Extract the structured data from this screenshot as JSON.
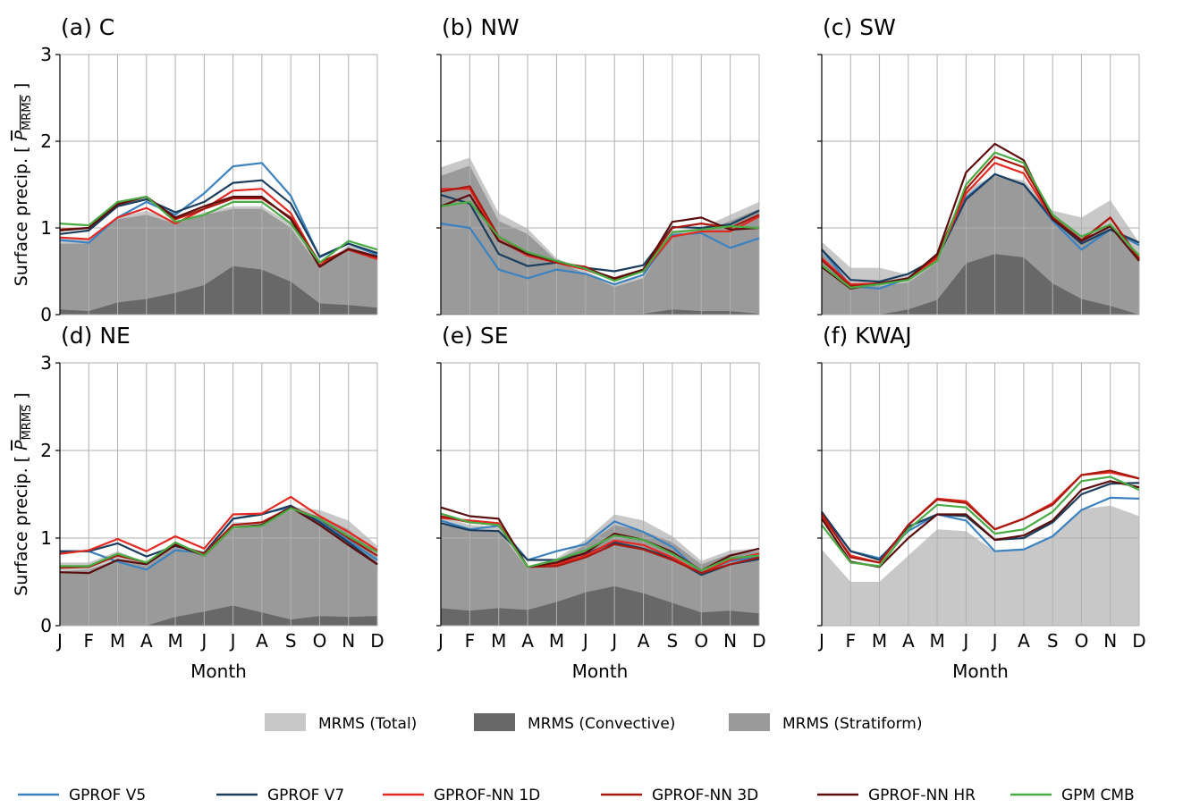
{
  "legend": {
    "areas": [
      {
        "name": "MRMS (Total)",
        "color": "#c8c8c8"
      },
      {
        "name": "MRMS (Convective)",
        "color": "#686868"
      },
      {
        "name": "MRMS (Stratiform)",
        "color": "#9a9a9a"
      }
    ],
    "lines": [
      {
        "name": "GPROF V5",
        "color": "#3b82c0"
      },
      {
        "name": "GPROF V7",
        "color": "#1c3e5e"
      },
      {
        "name": "GPROF-NN 1D",
        "color": "#e32a22"
      },
      {
        "name": "GPROF-NN 3D",
        "color": "#a8190f"
      },
      {
        "name": "GPROF-NN HR",
        "color": "#5a0e0e"
      },
      {
        "name": "GPM CMB",
        "color": "#4aab44"
      }
    ]
  },
  "chart_data": [
    {
      "type": "area",
      "title": "(a) C",
      "categories": [
        "J",
        "F",
        "M",
        "A",
        "M",
        "J",
        "J",
        "A",
        "S",
        "O",
        "N",
        "D"
      ],
      "ylabel": "Surface precip. [ P_MRMS ]",
      "xlabel": "",
      "ylim": [
        0,
        3
      ],
      "yticks": [
        0,
        1,
        2,
        3
      ],
      "grid": true,
      "area_series": [
        {
          "name": "MRMS (Total)",
          "values": [
            0.88,
            0.88,
            1.12,
            1.2,
            1.07,
            1.18,
            1.25,
            1.25,
            1.05,
            0.56,
            0.8,
            0.72
          ]
        },
        {
          "name": "MRMS (Stratiform)",
          "values": [
            0.82,
            0.82,
            1.1,
            1.15,
            1.05,
            1.15,
            1.22,
            1.22,
            1.0,
            0.54,
            0.76,
            0.65
          ]
        },
        {
          "name": "MRMS (Convective)",
          "values": [
            0.06,
            0.04,
            0.14,
            0.18,
            0.25,
            0.34,
            0.56,
            0.52,
            0.38,
            0.13,
            0.11,
            0.08
          ]
        }
      ],
      "series": [
        {
          "name": "GPROF V5",
          "values": [
            0.86,
            0.83,
            1.12,
            1.3,
            1.15,
            1.4,
            1.71,
            1.75,
            1.37,
            0.66,
            0.82,
            0.69
          ]
        },
        {
          "name": "GPROF V7",
          "values": [
            0.93,
            0.97,
            1.25,
            1.33,
            1.18,
            1.3,
            1.52,
            1.55,
            1.28,
            0.67,
            0.82,
            0.71
          ]
        },
        {
          "name": "GPROF-NN 1D",
          "values": [
            0.89,
            0.87,
            1.12,
            1.23,
            1.05,
            1.22,
            1.43,
            1.45,
            1.17,
            0.57,
            0.75,
            0.64
          ]
        },
        {
          "name": "GPROF-NN 3D",
          "values": [
            0.98,
            1.0,
            1.29,
            1.36,
            1.1,
            1.22,
            1.34,
            1.34,
            1.12,
            0.6,
            0.75,
            0.66
          ]
        },
        {
          "name": "GPROF-NN HR",
          "values": [
            0.97,
            1.0,
            1.27,
            1.36,
            1.12,
            1.25,
            1.36,
            1.36,
            1.1,
            0.55,
            0.76,
            0.67
          ]
        },
        {
          "name": "GPM CMB",
          "values": [
            1.05,
            1.03,
            1.3,
            1.36,
            1.07,
            1.15,
            1.3,
            1.3,
            1.05,
            0.6,
            0.85,
            0.75
          ]
        }
      ]
    },
    {
      "type": "area",
      "title": "(b) NW",
      "categories": [
        "J",
        "F",
        "M",
        "A",
        "M",
        "J",
        "J",
        "A",
        "S",
        "O",
        "N",
        "D"
      ],
      "ylabel": "",
      "xlabel": "",
      "ylim": [
        0,
        3
      ],
      "yticks": [
        0,
        1,
        2,
        3
      ],
      "grid": true,
      "area_series": [
        {
          "name": "MRMS (Total)",
          "values": [
            1.7,
            1.81,
            1.17,
            0.99,
            0.65,
            0.5,
            0.35,
            0.44,
            0.97,
            1.0,
            1.15,
            1.3
          ]
        },
        {
          "name": "MRMS (Stratiform)",
          "values": [
            1.6,
            1.72,
            1.08,
            0.93,
            0.62,
            0.47,
            0.32,
            0.42,
            0.92,
            0.95,
            1.08,
            1.22
          ]
        },
        {
          "name": "MRMS (Convective)",
          "values": [
            0.01,
            0.01,
            0.01,
            0.01,
            0.01,
            0.01,
            0.01,
            0.01,
            0.06,
            0.04,
            0.04,
            0.01
          ]
        }
      ],
      "series": [
        {
          "name": "GPROF V5",
          "values": [
            1.05,
            1.0,
            0.52,
            0.42,
            0.52,
            0.47,
            0.35,
            0.46,
            0.92,
            0.94,
            0.77,
            0.88
          ]
        },
        {
          "name": "GPROF V7",
          "values": [
            1.38,
            1.28,
            0.7,
            0.56,
            0.6,
            0.54,
            0.5,
            0.57,
            1.01,
            1.0,
            1.04,
            1.2
          ]
        },
        {
          "name": "GPROF-NN 1D",
          "values": [
            1.45,
            1.45,
            0.86,
            0.68,
            0.6,
            0.52,
            0.4,
            0.5,
            0.9,
            0.96,
            0.96,
            1.13
          ]
        },
        {
          "name": "GPROF-NN 3D",
          "values": [
            1.42,
            1.48,
            0.9,
            0.7,
            0.6,
            0.55,
            0.4,
            0.52,
            1.0,
            1.05,
            1.0,
            1.15
          ]
        },
        {
          "name": "GPROF-NN HR",
          "values": [
            1.25,
            1.38,
            0.85,
            0.7,
            0.62,
            0.53,
            0.42,
            0.52,
            1.07,
            1.12,
            0.98,
            1.0
          ]
        },
        {
          "name": "GPM CMB",
          "values": [
            1.25,
            1.3,
            0.9,
            0.72,
            0.62,
            0.53,
            0.39,
            0.5,
            0.95,
            0.98,
            1.02,
            1.0
          ]
        }
      ]
    },
    {
      "type": "area",
      "title": "(c) SW",
      "categories": [
        "J",
        "F",
        "M",
        "A",
        "M",
        "J",
        "J",
        "A",
        "S",
        "O",
        "N",
        "D"
      ],
      "ylabel": "",
      "xlabel": "",
      "ylim": [
        0,
        3
      ],
      "yticks": [
        0,
        1,
        2,
        3
      ],
      "grid": true,
      "area_series": [
        {
          "name": "MRMS (Total)",
          "values": [
            0.84,
            0.54,
            0.54,
            0.46,
            0.65,
            1.45,
            1.6,
            1.55,
            1.2,
            1.12,
            1.32,
            0.83
          ]
        },
        {
          "name": "MRMS (Stratiform)",
          "values": [
            0.72,
            0.33,
            0.33,
            0.37,
            0.6,
            1.35,
            1.6,
            1.5,
            1.17,
            0.88,
            1.0,
            0.7
          ]
        },
        {
          "name": "MRMS (Convective)",
          "values": [
            0.0,
            0.0,
            0.0,
            0.06,
            0.17,
            0.59,
            0.7,
            0.66,
            0.36,
            0.18,
            0.1,
            0.0
          ]
        }
      ],
      "series": [
        {
          "name": "GPROF V5",
          "values": [
            0.75,
            0.33,
            0.3,
            0.42,
            0.65,
            1.35,
            1.62,
            1.5,
            1.08,
            0.75,
            0.98,
            0.8
          ]
        },
        {
          "name": "GPROF V7",
          "values": [
            0.75,
            0.4,
            0.38,
            0.47,
            0.65,
            1.33,
            1.62,
            1.5,
            1.1,
            0.82,
            0.98,
            0.83
          ]
        },
        {
          "name": "GPROF-NN 1D",
          "values": [
            0.65,
            0.35,
            0.36,
            0.42,
            0.65,
            1.4,
            1.75,
            1.63,
            1.1,
            0.85,
            1.12,
            0.65
          ]
        },
        {
          "name": "GPROF-NN 3D",
          "values": [
            0.63,
            0.33,
            0.35,
            0.42,
            0.68,
            1.45,
            1.82,
            1.7,
            1.12,
            0.86,
            1.12,
            0.64
          ]
        },
        {
          "name": "GPROF-NN HR",
          "values": [
            0.55,
            0.3,
            0.36,
            0.42,
            0.7,
            1.64,
            1.97,
            1.78,
            1.1,
            0.85,
            1.02,
            0.62
          ]
        },
        {
          "name": "GPM CMB",
          "values": [
            0.57,
            0.31,
            0.35,
            0.4,
            0.62,
            1.5,
            1.87,
            1.75,
            1.15,
            0.9,
            1.04,
            0.68
          ]
        }
      ]
    },
    {
      "type": "area",
      "title": "(d) NE",
      "categories": [
        "J",
        "F",
        "M",
        "A",
        "M",
        "J",
        "J",
        "A",
        "S",
        "O",
        "N",
        "D"
      ],
      "ylabel": "Surface precip. [ P_MRMS ]",
      "xlabel": "Month",
      "ylim": [
        0,
        3
      ],
      "yticks": [
        0,
        1,
        2,
        3
      ],
      "grid": true,
      "area_series": [
        {
          "name": "MRMS (Total)",
          "values": [
            0.72,
            0.72,
            0.85,
            0.72,
            0.93,
            0.84,
            1.18,
            1.18,
            1.36,
            1.32,
            1.2,
            0.91
          ]
        },
        {
          "name": "MRMS (Stratiform)",
          "values": [
            0.62,
            0.64,
            0.75,
            0.68,
            0.9,
            0.8,
            1.1,
            1.15,
            1.32,
            1.25,
            1.1,
            0.8
          ]
        },
        {
          "name": "MRMS (Convective)",
          "values": [
            0.0,
            0.0,
            0.0,
            0.0,
            0.1,
            0.16,
            0.23,
            0.15,
            0.07,
            0.11,
            0.1,
            0.11
          ]
        }
      ],
      "series": [
        {
          "name": "GPROF V5",
          "values": [
            0.84,
            0.85,
            0.73,
            0.64,
            0.86,
            0.83,
            1.22,
            1.28,
            1.35,
            1.2,
            0.97,
            0.75
          ]
        },
        {
          "name": "GPROF V7",
          "values": [
            0.85,
            0.85,
            0.94,
            0.79,
            0.91,
            0.83,
            1.22,
            1.27,
            1.37,
            1.18,
            0.95,
            0.7
          ]
        },
        {
          "name": "GPROF-NN 1D",
          "values": [
            0.82,
            0.86,
            0.99,
            0.85,
            1.02,
            0.88,
            1.27,
            1.28,
            1.47,
            1.25,
            1.07,
            0.86
          ]
        },
        {
          "name": "GPROF-NN 3D",
          "values": [
            0.66,
            0.67,
            0.8,
            0.72,
            0.93,
            0.82,
            1.15,
            1.18,
            1.35,
            1.22,
            1.0,
            0.8
          ]
        },
        {
          "name": "GPROF-NN HR",
          "values": [
            0.61,
            0.6,
            0.75,
            0.7,
            0.92,
            0.8,
            1.12,
            1.15,
            1.35,
            1.15,
            0.92,
            0.7
          ]
        },
        {
          "name": "GPM CMB",
          "values": [
            0.68,
            0.68,
            0.82,
            0.72,
            0.95,
            0.8,
            1.12,
            1.14,
            1.34,
            1.22,
            1.02,
            0.84
          ]
        }
      ]
    },
    {
      "type": "area",
      "title": "(e) SE",
      "categories": [
        "J",
        "F",
        "M",
        "A",
        "M",
        "J",
        "J",
        "A",
        "S",
        "O",
        "N",
        "D"
      ],
      "ylabel": "",
      "xlabel": "Month",
      "ylim": [
        0,
        3
      ],
      "yticks": [
        0,
        1,
        2,
        3
      ],
      "grid": true,
      "area_series": [
        {
          "name": "MRMS (Total)",
          "values": [
            1.25,
            1.15,
            1.13,
            0.65,
            0.77,
            0.98,
            1.27,
            1.2,
            1.02,
            0.74,
            0.86,
            0.88
          ]
        },
        {
          "name": "MRMS (Stratiform)",
          "values": [
            1.15,
            1.1,
            1.08,
            0.65,
            0.75,
            0.92,
            1.15,
            1.08,
            0.95,
            0.7,
            0.82,
            0.85
          ]
        },
        {
          "name": "MRMS (Convective)",
          "values": [
            0.2,
            0.17,
            0.2,
            0.18,
            0.27,
            0.38,
            0.45,
            0.37,
            0.26,
            0.15,
            0.17,
            0.14
          ]
        }
      ],
      "series": [
        {
          "name": "GPROF V5",
          "values": [
            1.2,
            1.1,
            1.14,
            0.75,
            0.85,
            0.93,
            1.19,
            1.07,
            0.9,
            0.6,
            0.74,
            0.78
          ]
        },
        {
          "name": "GPROF V7",
          "values": [
            1.17,
            1.09,
            1.08,
            0.75,
            0.75,
            0.82,
            0.95,
            0.88,
            0.77,
            0.58,
            0.7,
            0.76
          ]
        },
        {
          "name": "GPROF-NN 1D",
          "values": [
            1.23,
            1.2,
            1.17,
            0.67,
            0.7,
            0.8,
            0.97,
            0.92,
            0.78,
            0.6,
            0.75,
            0.82
          ]
        },
        {
          "name": "GPROF-NN 3D",
          "values": [
            1.25,
            1.18,
            1.15,
            0.67,
            0.68,
            0.78,
            0.93,
            0.87,
            0.75,
            0.6,
            0.7,
            0.78
          ]
        },
        {
          "name": "GPROF-NN HR",
          "values": [
            1.35,
            1.25,
            1.22,
            0.67,
            0.72,
            0.83,
            1.05,
            0.98,
            0.84,
            0.63,
            0.8,
            0.88
          ]
        },
        {
          "name": "GPM CMB",
          "values": [
            1.28,
            1.18,
            1.15,
            0.67,
            0.75,
            0.86,
            1.03,
            0.98,
            0.82,
            0.63,
            0.77,
            0.8
          ]
        }
      ]
    },
    {
      "type": "area",
      "title": "(f) KWAJ",
      "categories": [
        "J",
        "F",
        "M",
        "A",
        "M",
        "J",
        "J",
        "A",
        "S",
        "O",
        "N",
        "D"
      ],
      "ylabel": "",
      "xlabel": "Month",
      "ylim": [
        0,
        3
      ],
      "yticks": [
        0,
        1,
        2,
        3
      ],
      "grid": true,
      "area_series": [
        {
          "name": "MRMS (Total)",
          "values": [
            0.87,
            0.5,
            0.5,
            0.8,
            1.1,
            1.08,
            0.85,
            0.88,
            1.02,
            1.33,
            1.37,
            1.25
          ]
        }
      ],
      "series": [
        {
          "name": "GPROF V5",
          "values": [
            1.28,
            0.85,
            0.77,
            1.08,
            1.27,
            1.2,
            0.85,
            0.87,
            1.02,
            1.32,
            1.46,
            1.45
          ]
        },
        {
          "name": "GPROF V7",
          "values": [
            1.3,
            0.85,
            0.75,
            1.13,
            1.27,
            1.25,
            0.98,
            1.0,
            1.18,
            1.5,
            1.62,
            1.63
          ]
        },
        {
          "name": "GPROF-NN 1D",
          "values": [
            1.25,
            0.8,
            0.72,
            1.15,
            1.45,
            1.42,
            1.1,
            1.22,
            1.4,
            1.72,
            1.75,
            1.68
          ]
        },
        {
          "name": "GPROF-NN 3D",
          "values": [
            1.28,
            0.78,
            0.72,
            1.15,
            1.44,
            1.4,
            1.1,
            1.22,
            1.38,
            1.72,
            1.77,
            1.68
          ]
        },
        {
          "name": "GPROF-NN HR",
          "values": [
            1.22,
            0.73,
            0.67,
            1.0,
            1.27,
            1.27,
            0.98,
            1.03,
            1.2,
            1.55,
            1.65,
            1.58
          ]
        },
        {
          "name": "GPM CMB",
          "values": [
            1.15,
            0.72,
            0.68,
            1.1,
            1.38,
            1.35,
            1.05,
            1.1,
            1.3,
            1.65,
            1.7,
            1.55
          ]
        }
      ]
    }
  ]
}
